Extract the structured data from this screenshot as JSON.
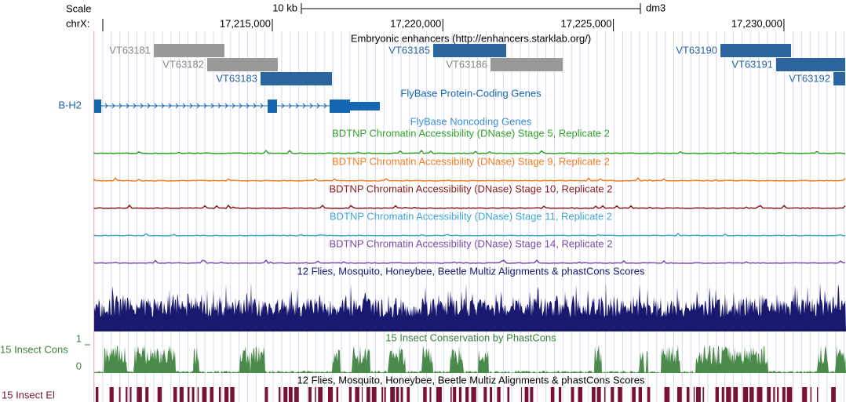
{
  "header": {
    "scale": "Scale",
    "chrom": "chrX:",
    "scale_bar": "10 kb",
    "assembly": "dm3",
    "positions": [
      "17,215,000",
      "17,220,000",
      "17,225,000",
      "17,230,000"
    ]
  },
  "tracks": [
    {
      "title": "Embryonic enhancers (http://enhancers.starklab.org/)",
      "features": [
        "VT63181",
        "VT63182",
        "VT63183",
        "VT63185",
        "VT63186",
        "VT63190",
        "VT63191",
        "VT63192"
      ]
    },
    {
      "title": "FlyBase Protein-Coding Genes",
      "features": [
        "B-H2"
      ]
    },
    {
      "title": "FlyBase Noncoding Genes"
    },
    {
      "title": "BDTNP Chromatin Accessibility (DNase) Stage 5, Replicate 2"
    },
    {
      "title": "BDTNP Chromatin Accessibility (DNase) Stage 9, Replicate 2"
    },
    {
      "title": "BDTNP Chromatin Accessibility (DNase) Stage 10, Replicate 2"
    },
    {
      "title": "BDTNP Chromatin Accessibility (DNase) Stage 11, Replicate 2"
    },
    {
      "title": "BDTNP Chromatin Accessibility (DNase) Stage 14, Replicate 2"
    },
    {
      "title": "12 Flies, Mosquito, Honeybee, Beetle Multiz Alignments & phastCons Scores"
    },
    {
      "title": "15 Insect Conservation by PhastCons",
      "side_label": "15 Insect Cons",
      "axis_labels": [
        "1",
        "0"
      ]
    },
    {
      "title": "12 Flies, Mosquito, Honeybee, Beetle Multiz Alignments & phastCons Scores",
      "side_label": "15 Insect El"
    }
  ]
}
